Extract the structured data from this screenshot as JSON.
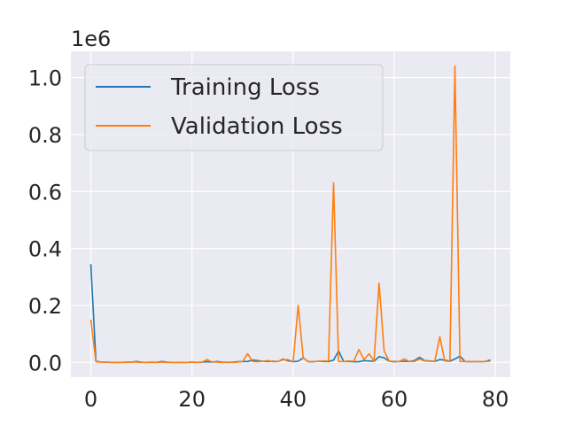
{
  "chart_data": {
    "type": "line",
    "title": "",
    "xlabel": "",
    "ylabel": "",
    "y_offset_text": "1e6",
    "xlim": [
      -3.95,
      82.95
    ],
    "ylim": [
      -0.052,
      1.092
    ],
    "x_ticks": [
      0,
      20,
      40,
      60,
      80
    ],
    "x_tick_labels": [
      "0",
      "20",
      "40",
      "60",
      "80"
    ],
    "y_ticks": [
      0.0,
      0.2,
      0.4,
      0.6,
      0.8,
      1.0
    ],
    "y_tick_labels": [
      "0.0",
      "0.2",
      "0.4",
      "0.6",
      "0.8",
      "1.0"
    ],
    "grid": true,
    "legend_position": "top-left",
    "background": "#eaeaf2",
    "series": [
      {
        "name": "Training Loss",
        "color": "#1f77b4",
        "x": [
          0,
          1,
          2,
          3,
          4,
          5,
          6,
          7,
          8,
          9,
          10,
          11,
          12,
          13,
          14,
          15,
          16,
          17,
          18,
          19,
          20,
          21,
          22,
          23,
          24,
          25,
          26,
          27,
          28,
          29,
          30,
          31,
          32,
          33,
          34,
          35,
          36,
          37,
          38,
          39,
          40,
          41,
          42,
          43,
          44,
          45,
          46,
          47,
          48,
          49,
          50,
          51,
          52,
          53,
          54,
          55,
          56,
          57,
          58,
          59,
          60,
          61,
          62,
          63,
          64,
          65,
          66,
          67,
          68,
          69,
          70,
          71,
          72,
          73,
          74,
          75,
          76,
          77,
          78,
          79
        ],
        "values": [
          0.345,
          0.005,
          0.001,
          0.001,
          0.0,
          0.0,
          0.0,
          0.001,
          0.001,
          0.003,
          0.001,
          0.0,
          0.001,
          0.0,
          0.003,
          0.001,
          0.0,
          0.0,
          0.0,
          0.0,
          0.001,
          0.0,
          0.001,
          0.002,
          0.001,
          0.003,
          0.001,
          0.0,
          0.001,
          0.002,
          0.003,
          0.003,
          0.008,
          0.006,
          0.004,
          0.003,
          0.004,
          0.003,
          0.01,
          0.008,
          0.002,
          0.004,
          0.016,
          0.002,
          0.002,
          0.004,
          0.003,
          0.003,
          0.008,
          0.04,
          0.003,
          0.003,
          0.002,
          0.002,
          0.006,
          0.005,
          0.004,
          0.02,
          0.016,
          0.004,
          0.002,
          0.003,
          0.004,
          0.003,
          0.006,
          0.018,
          0.006,
          0.005,
          0.003,
          0.01,
          0.008,
          0.004,
          0.012,
          0.022,
          0.003,
          0.002,
          0.003,
          0.002,
          0.003,
          0.008
        ]
      },
      {
        "name": "Validation Loss",
        "color": "#ff7f0e",
        "x": [
          0,
          1,
          2,
          3,
          4,
          5,
          6,
          7,
          8,
          9,
          10,
          11,
          12,
          13,
          14,
          15,
          16,
          17,
          18,
          19,
          20,
          21,
          22,
          23,
          24,
          25,
          26,
          27,
          28,
          29,
          30,
          31,
          32,
          33,
          34,
          35,
          36,
          37,
          38,
          39,
          40,
          41,
          42,
          43,
          44,
          45,
          46,
          47,
          48,
          49,
          50,
          51,
          52,
          53,
          54,
          55,
          56,
          57,
          58,
          59,
          60,
          61,
          62,
          63,
          64,
          65,
          66,
          67,
          68,
          69,
          70,
          71,
          72,
          73,
          74,
          75,
          76,
          77,
          78,
          79
        ],
        "values": [
          0.15,
          0.002,
          0.001,
          0.001,
          0.0,
          0.0,
          0.0,
          0.0,
          0.001,
          0.001,
          0.0,
          0.0,
          0.0,
          0.0,
          0.001,
          0.0,
          0.0,
          0.0,
          0.0,
          0.0,
          0.001,
          0.0,
          0.001,
          0.01,
          0.001,
          0.001,
          0.0,
          0.001,
          0.0,
          0.001,
          0.003,
          0.03,
          0.003,
          0.002,
          0.004,
          0.006,
          0.002,
          0.003,
          0.012,
          0.004,
          0.002,
          0.2,
          0.015,
          0.003,
          0.003,
          0.004,
          0.005,
          0.005,
          0.63,
          0.003,
          0.003,
          0.005,
          0.004,
          0.045,
          0.01,
          0.03,
          0.005,
          0.278,
          0.04,
          0.004,
          0.004,
          0.003,
          0.012,
          0.003,
          0.003,
          0.012,
          0.005,
          0.004,
          0.003,
          0.09,
          0.005,
          0.003,
          1.04,
          0.003,
          0.003,
          0.003,
          0.003,
          0.003,
          0.003,
          0.004
        ]
      }
    ]
  }
}
